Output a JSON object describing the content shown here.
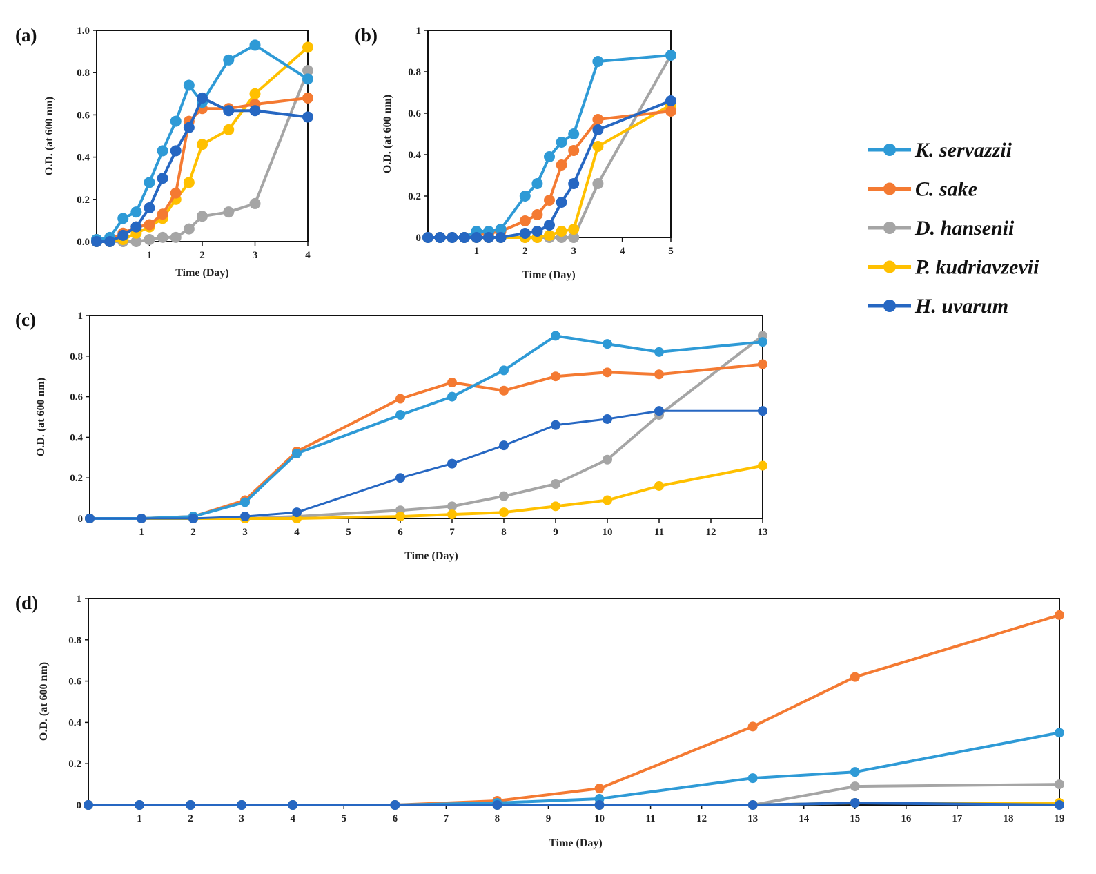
{
  "figure": {
    "legend": [
      {
        "name": "K. servazzii",
        "color": "#2E9AD6"
      },
      {
        "name": "C. sake",
        "color": "#F47A32"
      },
      {
        "name": "D. hansenii",
        "color": "#A5A5A5"
      },
      {
        "name": "P. kudriavzevii",
        "color": "#FFC000"
      },
      {
        "name": "H. uvarum",
        "color": "#2667C2"
      }
    ]
  },
  "chart_data": [
    {
      "type": "line",
      "panel": "(a)",
      "xlabel": "Time (Day)",
      "ylabel": "O.D.  (at 600 nm)",
      "xlim": [
        0,
        4
      ],
      "ylim": [
        0,
        1
      ],
      "xticks": [
        "1",
        "2",
        "3",
        "4"
      ],
      "yticks": [
        "0.0",
        "0.2",
        "0.4",
        "0.6",
        "0.8",
        "1.0"
      ],
      "series": [
        {
          "name": "K. servazzii",
          "x": [
            0,
            0.25,
            0.5,
            0.75,
            1,
            1.25,
            1.5,
            1.75,
            2,
            2.5,
            3,
            4
          ],
          "values": [
            0.01,
            0.02,
            0.11,
            0.14,
            0.28,
            0.43,
            0.57,
            0.74,
            0.66,
            0.86,
            0.93,
            0.77
          ]
        },
        {
          "name": "C. sake",
          "x": [
            0,
            0.25,
            0.5,
            0.75,
            1,
            1.25,
            1.5,
            1.75,
            2,
            2.5,
            3,
            4
          ],
          "values": [
            0.01,
            0.01,
            0.04,
            0.07,
            0.08,
            0.13,
            0.23,
            0.57,
            0.63,
            0.63,
            0.65,
            0.68
          ]
        },
        {
          "name": "D. hansenii",
          "x": [
            0,
            0.25,
            0.5,
            0.75,
            1,
            1.25,
            1.5,
            1.75,
            2,
            2.5,
            3,
            4
          ],
          "values": [
            0.0,
            0.0,
            0.0,
            0.0,
            0.01,
            0.02,
            0.02,
            0.06,
            0.12,
            0.14,
            0.18,
            0.81
          ]
        },
        {
          "name": "P. kudriavzevii",
          "x": [
            0,
            0.25,
            0.5,
            0.75,
            1,
            1.25,
            1.5,
            1.75,
            2,
            2.5,
            3,
            4
          ],
          "values": [
            0.0,
            0.0,
            0.01,
            0.04,
            0.07,
            0.11,
            0.2,
            0.28,
            0.46,
            0.53,
            0.7,
            0.92
          ]
        },
        {
          "name": "H. uvarum",
          "x": [
            0,
            0.25,
            0.5,
            0.75,
            1,
            1.25,
            1.5,
            1.75,
            2,
            2.5,
            3,
            4
          ],
          "values": [
            0.0,
            0.0,
            0.03,
            0.07,
            0.16,
            0.3,
            0.43,
            0.54,
            0.68,
            0.62,
            0.62,
            0.59
          ]
        }
      ]
    },
    {
      "type": "line",
      "panel": "(b)",
      "xlabel": "Time (Day)",
      "ylabel": "O.D.  (at 600 nm)",
      "xlim": [
        0,
        5
      ],
      "ylim": [
        0,
        1
      ],
      "xticks": [
        "1",
        "2",
        "3",
        "4",
        "5"
      ],
      "yticks": [
        "0",
        "0.2",
        "0.4",
        "0.6",
        "0.8",
        "1"
      ],
      "series": [
        {
          "name": "K. servazzii",
          "x": [
            0,
            0.25,
            0.5,
            0.75,
            1,
            1.25,
            1.5,
            2,
            2.25,
            2.5,
            2.75,
            3,
            3.5,
            5
          ],
          "values": [
            0,
            0,
            0,
            0,
            0.03,
            0.03,
            0.04,
            0.2,
            0.26,
            0.39,
            0.46,
            0.5,
            0.85,
            0.88
          ]
        },
        {
          "name": "C. sake",
          "x": [
            0,
            0.25,
            0.5,
            0.75,
            1,
            1.25,
            1.5,
            2,
            2.25,
            2.5,
            2.75,
            3,
            3.5,
            5
          ],
          "values": [
            0,
            0,
            0,
            0,
            0.01,
            0.02,
            0.03,
            0.08,
            0.11,
            0.18,
            0.35,
            0.42,
            0.57,
            0.61
          ]
        },
        {
          "name": "D. hansenii",
          "x": [
            0,
            0.25,
            0.5,
            0.75,
            1,
            1.25,
            1.5,
            2,
            2.25,
            2.5,
            2.75,
            3,
            3.5,
            5
          ],
          "values": [
            0,
            0,
            0,
            0,
            0,
            0,
            0,
            0,
            0,
            0,
            0,
            0,
            0.26,
            0.88
          ]
        },
        {
          "name": "P. kudriavzevii",
          "x": [
            0,
            0.25,
            0.5,
            0.75,
            1,
            1.25,
            1.5,
            2,
            2.25,
            2.5,
            2.75,
            3,
            3.5,
            5
          ],
          "values": [
            0,
            0,
            0,
            0,
            0,
            0,
            0,
            0,
            0,
            0.01,
            0.03,
            0.04,
            0.44,
            0.64
          ]
        },
        {
          "name": "H. uvarum",
          "x": [
            0,
            0.25,
            0.5,
            0.75,
            1,
            1.25,
            1.5,
            2,
            2.25,
            2.5,
            2.75,
            3,
            3.5,
            5
          ],
          "values": [
            0,
            0,
            0,
            0,
            0,
            0,
            0,
            0.02,
            0.03,
            0.06,
            0.17,
            0.26,
            0.52,
            0.66
          ]
        }
      ]
    },
    {
      "type": "line",
      "panel": "(c)",
      "xlabel": "Time (Day)",
      "ylabel": "O.D.  (at 600 nm)",
      "xlim": [
        0,
        13
      ],
      "ylim": [
        0,
        1
      ],
      "xticks": [
        "1",
        "2",
        "3",
        "4",
        "5",
        "6",
        "7",
        "8",
        "9",
        "10",
        "11",
        "12",
        "13"
      ],
      "yticks": [
        "0",
        "0.2",
        "0.4",
        "0.6",
        "0.8",
        "1"
      ],
      "series": [
        {
          "name": "K. servazzii",
          "x": [
            0,
            1,
            2,
            3,
            4,
            6,
            7,
            8,
            9,
            10,
            11,
            13
          ],
          "values": [
            0,
            0,
            0.01,
            0.08,
            0.32,
            0.51,
            0.6,
            0.73,
            0.9,
            0.86,
            0.82,
            0.87
          ]
        },
        {
          "name": "C. sake",
          "x": [
            0,
            1,
            2,
            3,
            4,
            6,
            7,
            8,
            9,
            10,
            11,
            13
          ],
          "values": [
            0,
            0,
            0.01,
            0.09,
            0.33,
            0.59,
            0.67,
            0.63,
            0.7,
            0.72,
            0.71,
            0.76
          ]
        },
        {
          "name": "D. hansenii",
          "x": [
            0,
            1,
            2,
            3,
            4,
            6,
            7,
            8,
            9,
            10,
            11,
            13
          ],
          "values": [
            0,
            0,
            0,
            0,
            0.01,
            0.04,
            0.06,
            0.11,
            0.17,
            0.29,
            0.51,
            0.9
          ]
        },
        {
          "name": "P. kudriavzevii",
          "x": [
            0,
            1,
            2,
            3,
            4,
            6,
            7,
            8,
            9,
            10,
            11,
            13
          ],
          "values": [
            0,
            0,
            0,
            0,
            0,
            0.01,
            0.02,
            0.03,
            0.06,
            0.09,
            0.16,
            0.26
          ]
        },
        {
          "name": "H. uvarum",
          "x": [
            0,
            1,
            2,
            3,
            4,
            6,
            7,
            8,
            9,
            10,
            11,
            13
          ],
          "values": [
            0,
            0,
            0,
            0.01,
            0.03,
            0.2,
            0.27,
            0.36,
            0.46,
            0.49,
            0.53,
            0.53
          ]
        }
      ]
    },
    {
      "type": "line",
      "panel": "(d)",
      "xlabel": "Time (Day)",
      "ylabel": "O.D.  (at 600 nm)",
      "xlim": [
        0,
        19
      ],
      "ylim": [
        0,
        1
      ],
      "xticks": [
        "1",
        "2",
        "3",
        "4",
        "5",
        "6",
        "7",
        "8",
        "9",
        "10",
        "11",
        "12",
        "13",
        "14",
        "15",
        "16",
        "17",
        "18",
        "19"
      ],
      "yticks": [
        "0",
        "0.2",
        "0.4",
        "0.6",
        "0.8",
        "1"
      ],
      "series": [
        {
          "name": "K. servazzii",
          "x": [
            0,
            1,
            2,
            3,
            4,
            6,
            8,
            10,
            13,
            15,
            19
          ],
          "values": [
            0,
            0,
            0,
            0,
            0,
            0,
            0.01,
            0.03,
            0.13,
            0.16,
            0.35
          ]
        },
        {
          "name": "C. sake",
          "x": [
            0,
            1,
            2,
            3,
            4,
            6,
            8,
            10,
            13,
            15,
            19
          ],
          "values": [
            0,
            0,
            0,
            0,
            0,
            0,
            0.02,
            0.08,
            0.38,
            0.62,
            0.92
          ]
        },
        {
          "name": "D. hansenii",
          "x": [
            0,
            1,
            2,
            3,
            4,
            6,
            8,
            10,
            13,
            15,
            19
          ],
          "values": [
            0,
            0,
            0,
            0,
            0,
            0,
            0,
            0,
            0,
            0.09,
            0.1
          ]
        },
        {
          "name": "P. kudriavzevii",
          "x": [
            0,
            1,
            2,
            3,
            4,
            6,
            8,
            10,
            13,
            15,
            19
          ],
          "values": [
            0,
            0,
            0,
            0,
            0,
            0,
            0,
            0,
            0,
            0.01,
            0.01
          ]
        },
        {
          "name": "H. uvarum",
          "x": [
            0,
            1,
            2,
            3,
            4,
            6,
            8,
            10,
            13,
            15,
            19
          ],
          "values": [
            0,
            0,
            0,
            0,
            0,
            0,
            0,
            0,
            0,
            0.01,
            0
          ]
        }
      ]
    }
  ]
}
